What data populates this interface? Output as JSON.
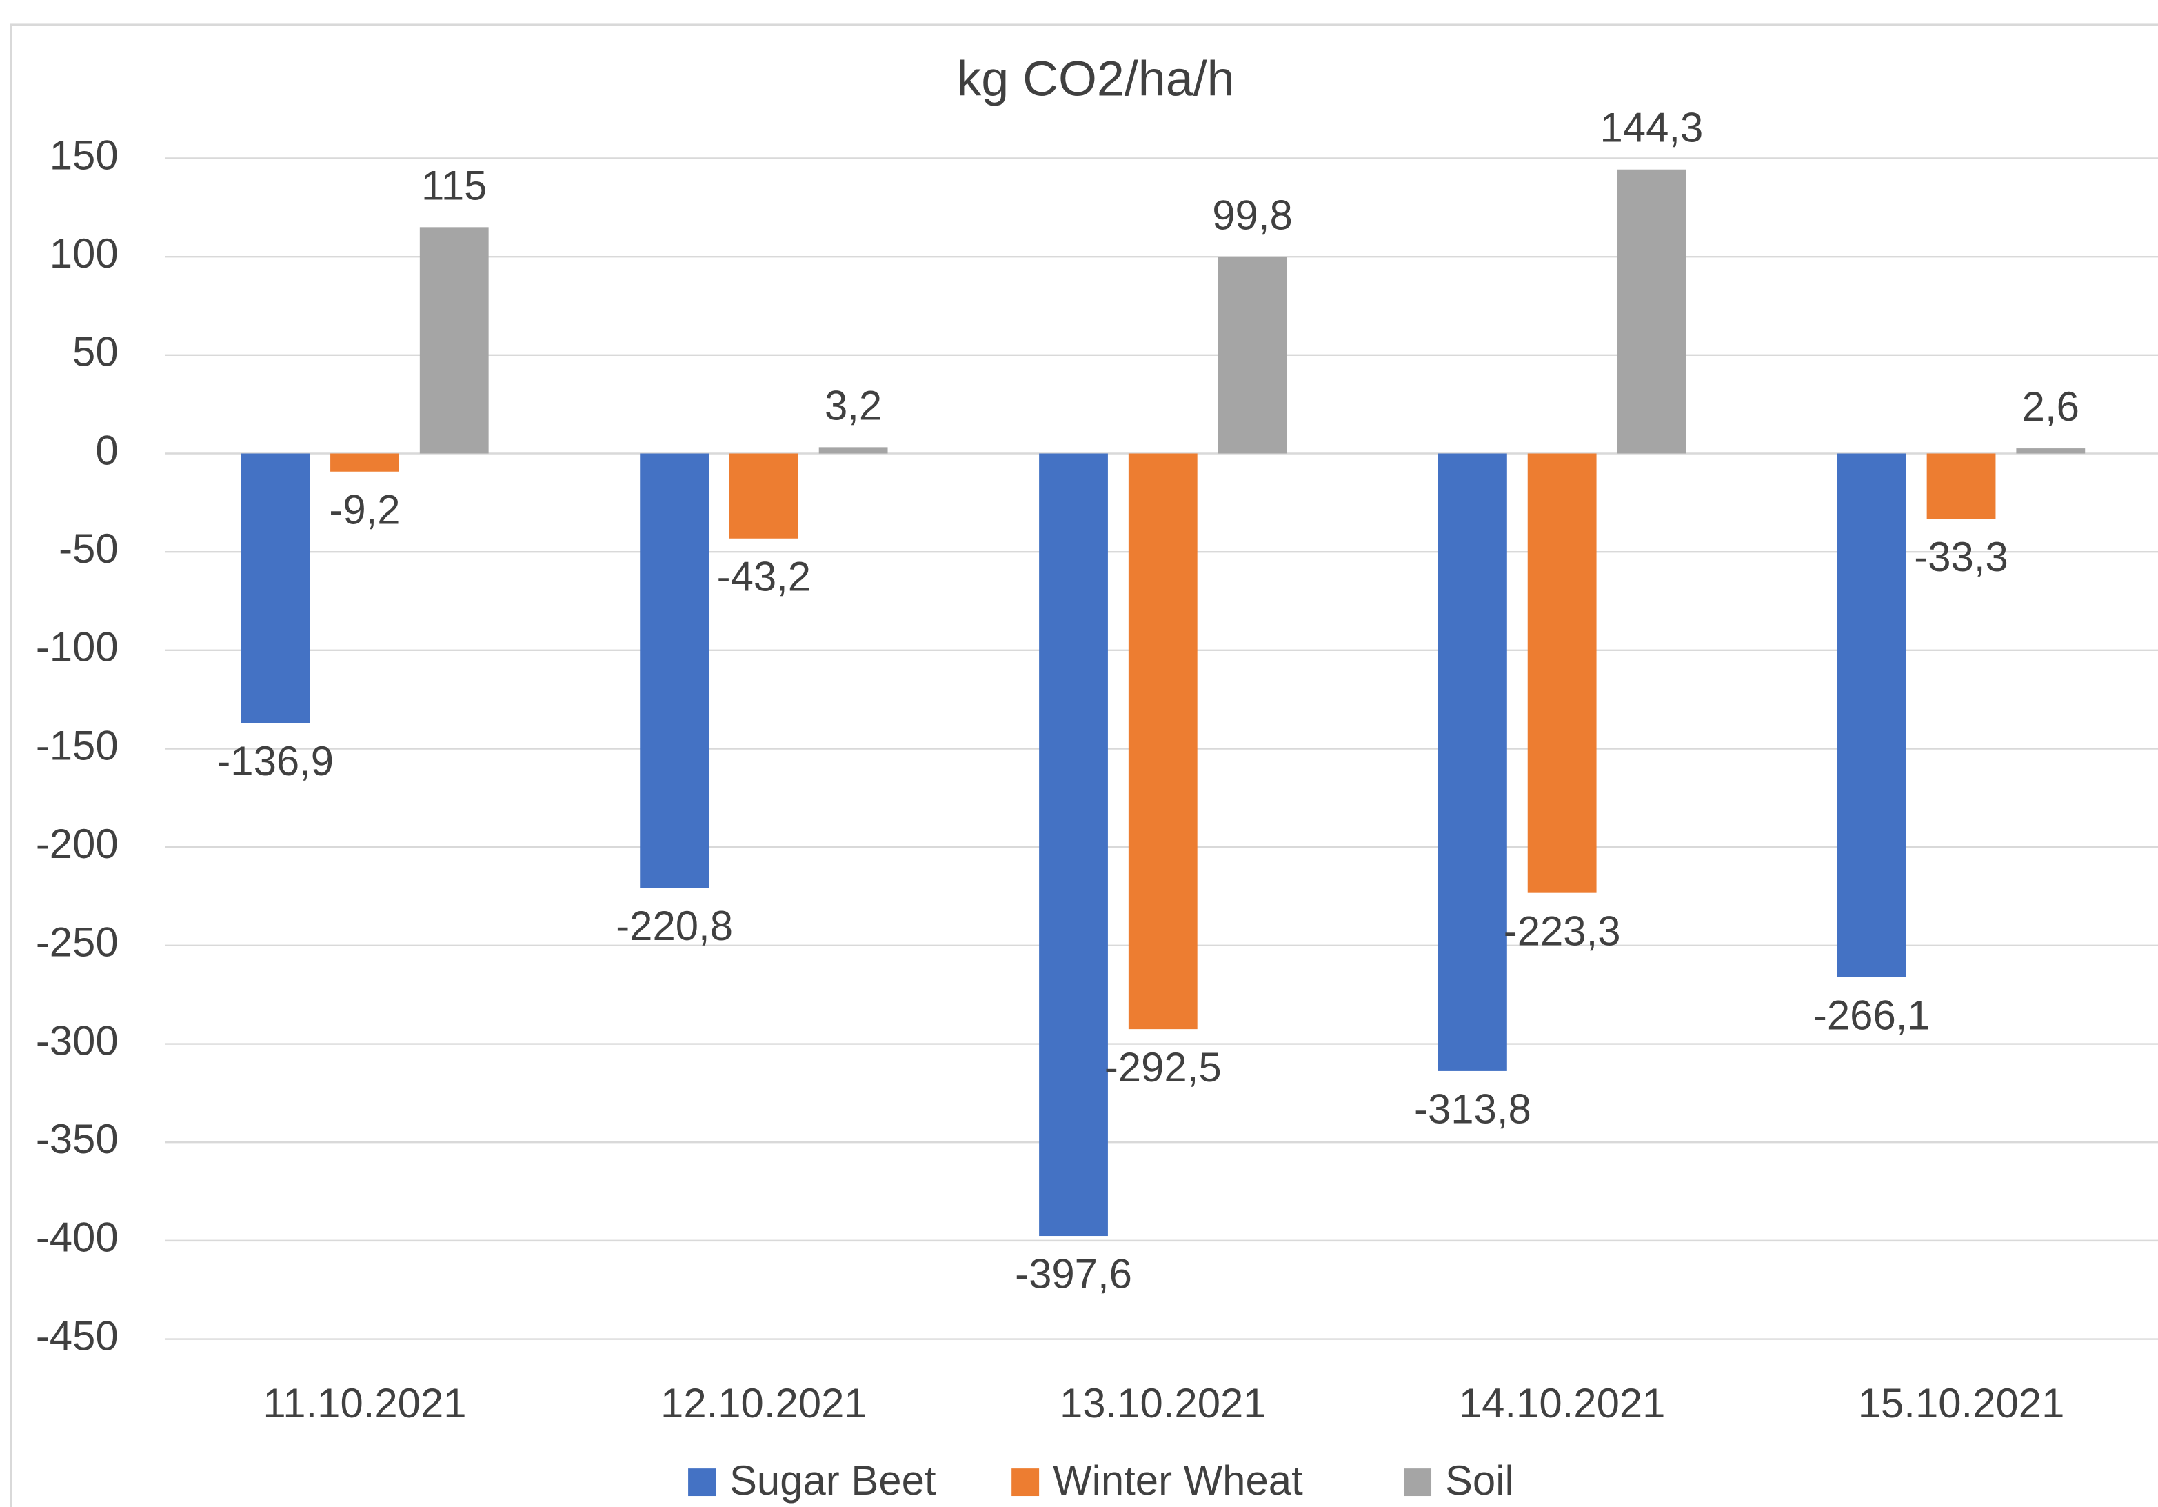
{
  "chart_data": {
    "type": "bar",
    "title": "kg CO2/ha/h",
    "categories": [
      "11.10.2021",
      "12.10.2021",
      "13.10.2021",
      "14.10.2021",
      "15.10.2021"
    ],
    "series": [
      {
        "name": "Sugar Beet",
        "color": "#4472c4",
        "values": [
          -136.9,
          -220.8,
          -397.6,
          -313.8,
          -266.1
        ],
        "value_labels": [
          "-136,9",
          "-220,8",
          "-397,6",
          "-313,8",
          "-266,1"
        ]
      },
      {
        "name": "Winter Wheat",
        "color": "#ed7d31",
        "values": [
          -9.2,
          -43.2,
          -292.5,
          -223.3,
          -33.3
        ],
        "value_labels": [
          "-9,2",
          "-43,2",
          "-292,5",
          "-223,3",
          "-33,3"
        ]
      },
      {
        "name": "Soil",
        "color": "#a5a5a5",
        "values": [
          115,
          3.2,
          99.8,
          144.3,
          2.6
        ],
        "value_labels": [
          "115",
          "3,2",
          "99,8",
          "144,3",
          "2,6"
        ]
      }
    ],
    "ylim": [
      -450,
      150
    ],
    "yticks": [
      150,
      100,
      50,
      0,
      -50,
      -100,
      -150,
      -200,
      -250,
      -300,
      -350,
      -400,
      -450
    ],
    "grid": true,
    "legend": "bottom"
  }
}
